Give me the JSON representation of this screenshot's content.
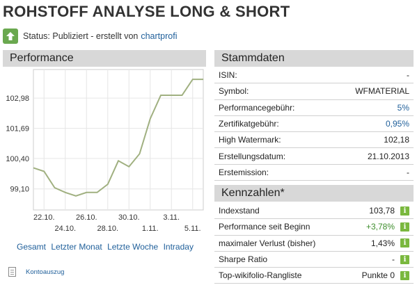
{
  "page": {
    "title": "ROHSTOFF ANALYSE LONG & SHORT"
  },
  "status": {
    "label": "Status: Publiziert - erstellt von",
    "author": "chartprofi",
    "icon": "upload-arrow-icon"
  },
  "performance": {
    "header": "Performance",
    "range_links": [
      "Gesamt",
      "Letzter Monat",
      "Letzte Woche",
      "Intraday"
    ],
    "konto_label": "Kontoauszug"
  },
  "chart_data": {
    "type": "line",
    "x_labels_top": [
      "22.10.",
      "26.10.",
      "30.10.",
      "3.11."
    ],
    "x_labels_bottom": [
      "24.10.",
      "28.10.",
      "1.11.",
      "5.11."
    ],
    "y_ticks": [
      "102,98",
      "101,69",
      "100,40",
      "99,10"
    ],
    "y_tick_values": [
      102.98,
      101.69,
      100.4,
      99.1
    ],
    "ylim": [
      98.2,
      104.2
    ],
    "x": [
      "21.10.",
      "22.10.",
      "23.10.",
      "24.10.",
      "25.10.",
      "26.10.",
      "27.10.",
      "28.10.",
      "29.10.",
      "30.10.",
      "31.10.",
      "1.11.",
      "2.11.",
      "3.11.",
      "4.11.",
      "5.11.",
      "6.11."
    ],
    "values": [
      100.0,
      99.85,
      99.15,
      98.95,
      98.8,
      98.95,
      98.95,
      99.3,
      100.3,
      100.05,
      100.6,
      102.1,
      103.1,
      103.1,
      103.1,
      103.78,
      103.78
    ],
    "grid": true,
    "line_color": "#a0b080"
  },
  "stammdaten": {
    "header": "Stammdaten",
    "rows": [
      {
        "label": "ISIN:",
        "value": "-"
      },
      {
        "label": "Symbol:",
        "value": "WFMATERIAL"
      },
      {
        "label": "Performancegebühr:",
        "value": "5%"
      },
      {
        "label": "Zertifikatgebühr:",
        "value": "0,95%"
      },
      {
        "label": "High Watermark:",
        "value": "102,18"
      },
      {
        "label": "Erstellungsdatum:",
        "value": "21.10.2013"
      },
      {
        "label": "Erstemission:",
        "value": "-"
      }
    ]
  },
  "kennzahlen": {
    "header": "Kennzahlen*",
    "rows": [
      {
        "label": "Indexstand",
        "value": "103,78"
      },
      {
        "label": "Performance seit Beginn",
        "value": "+3,78%"
      },
      {
        "label": "maximaler Verlust (bisher)",
        "value": "1,43%"
      },
      {
        "label": "Sharpe Ratio",
        "value": "-"
      },
      {
        "label": "Top-wikifolio-Rangliste",
        "value": "Punkte 0"
      }
    ],
    "info_glyph": "i"
  },
  "colors": {
    "header_bg": "#d8d8d8",
    "link": "#1f5f9a",
    "positive": "#3e8e2c",
    "info_icon": "#7ab83e"
  }
}
